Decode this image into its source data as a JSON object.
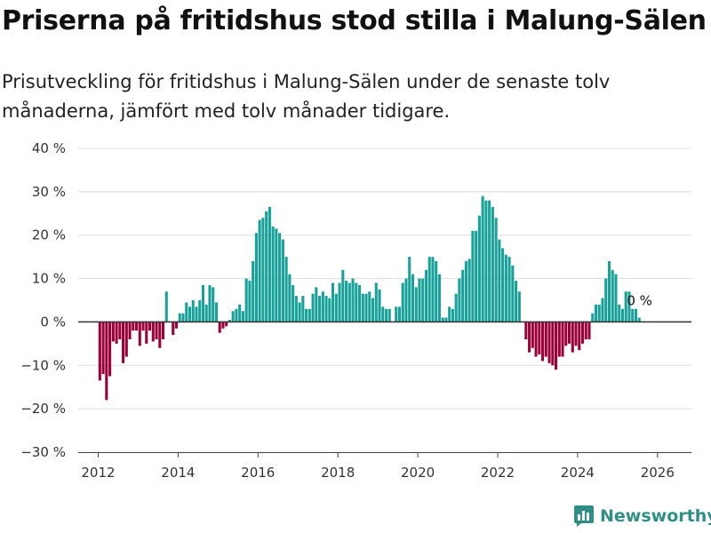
{
  "title": "Priserna på fritidshus stod stilla i Malung-Sälen",
  "subtitle": "Prisutveckling för fritidshus i Malung-Sälen under de senaste tolv månaderna, jämfört med tolv månader tidigare.",
  "brand": "Newsworthy",
  "colors": {
    "positive": "#18a198",
    "negative": "#9b0039",
    "grid": "#dddddd",
    "zero": "#333333",
    "brand": "#2f8f86"
  },
  "chart_data": {
    "type": "bar",
    "title": "Priserna på fritidshus stod stilla i Malung-Sälen",
    "xlabel": "",
    "ylabel": "",
    "ylim": [
      -30,
      40
    ],
    "y_ticks": [
      "40 %",
      "30 %",
      "20 %",
      "10 %",
      "0 %",
      "−10 %",
      "−20 %",
      "−30 %"
    ],
    "y_tick_values": [
      40,
      30,
      20,
      10,
      0,
      -10,
      -20,
      -30
    ],
    "x_ticks": [
      "2012",
      "2014",
      "2016",
      "2018",
      "2020",
      "2022",
      "2024",
      "2026"
    ],
    "x_tick_values": [
      2012,
      2014,
      2016,
      2018,
      2020,
      2022,
      2024,
      2026
    ],
    "x_range": [
      2011.5,
      2026.85
    ],
    "start": [
      2012,
      1
    ],
    "frequency": "monthly",
    "annotation": "0 %",
    "values": [
      -13.5,
      -12,
      -18,
      -12.5,
      -4.5,
      -5,
      -4,
      -9.5,
      -8,
      -4,
      -2,
      -2,
      -5.5,
      -2,
      -5,
      -2,
      -4.5,
      -4,
      -6,
      -4,
      7,
      0,
      -3,
      -1.5,
      2,
      2,
      4.5,
      3.5,
      5,
      3.5,
      5,
      8.5,
      4,
      8.5,
      8,
      4.5,
      -2.5,
      -1.5,
      -1,
      0.5,
      2.5,
      3,
      4,
      2.5,
      10,
      9.5,
      14,
      20.5,
      23.5,
      24,
      25.5,
      26.5,
      22,
      21.5,
      20.5,
      19,
      15,
      11,
      8.5,
      6,
      4.5,
      6,
      3,
      3,
      6.5,
      8,
      6,
      7,
      6,
      5.5,
      9,
      6.5,
      9,
      12,
      9.5,
      9,
      10,
      9,
      8.5,
      6.5,
      6.5,
      7,
      5.5,
      9,
      7.5,
      3.5,
      3,
      3,
      0,
      3.5,
      3.5,
      9,
      10,
      15,
      11,
      8,
      10,
      10,
      12,
      15,
      15,
      14,
      11,
      1,
      1,
      3.5,
      3,
      6.5,
      10,
      12,
      14,
      14.5,
      21,
      21,
      24.5,
      29,
      28,
      28,
      26.5,
      24,
      19,
      17,
      15.5,
      15,
      13,
      9.5,
      7,
      0,
      -4,
      -7,
      -6,
      -8,
      -7.5,
      -9,
      -8,
      -9.5,
      -10,
      -11,
      -8,
      -8,
      -5.5,
      -5,
      -7,
      -5.5,
      -6.5,
      -5,
      -4,
      -4,
      2,
      4,
      4,
      5.5,
      10,
      14,
      12,
      11,
      4,
      3,
      7,
      7,
      3,
      3,
      1
    ]
  }
}
